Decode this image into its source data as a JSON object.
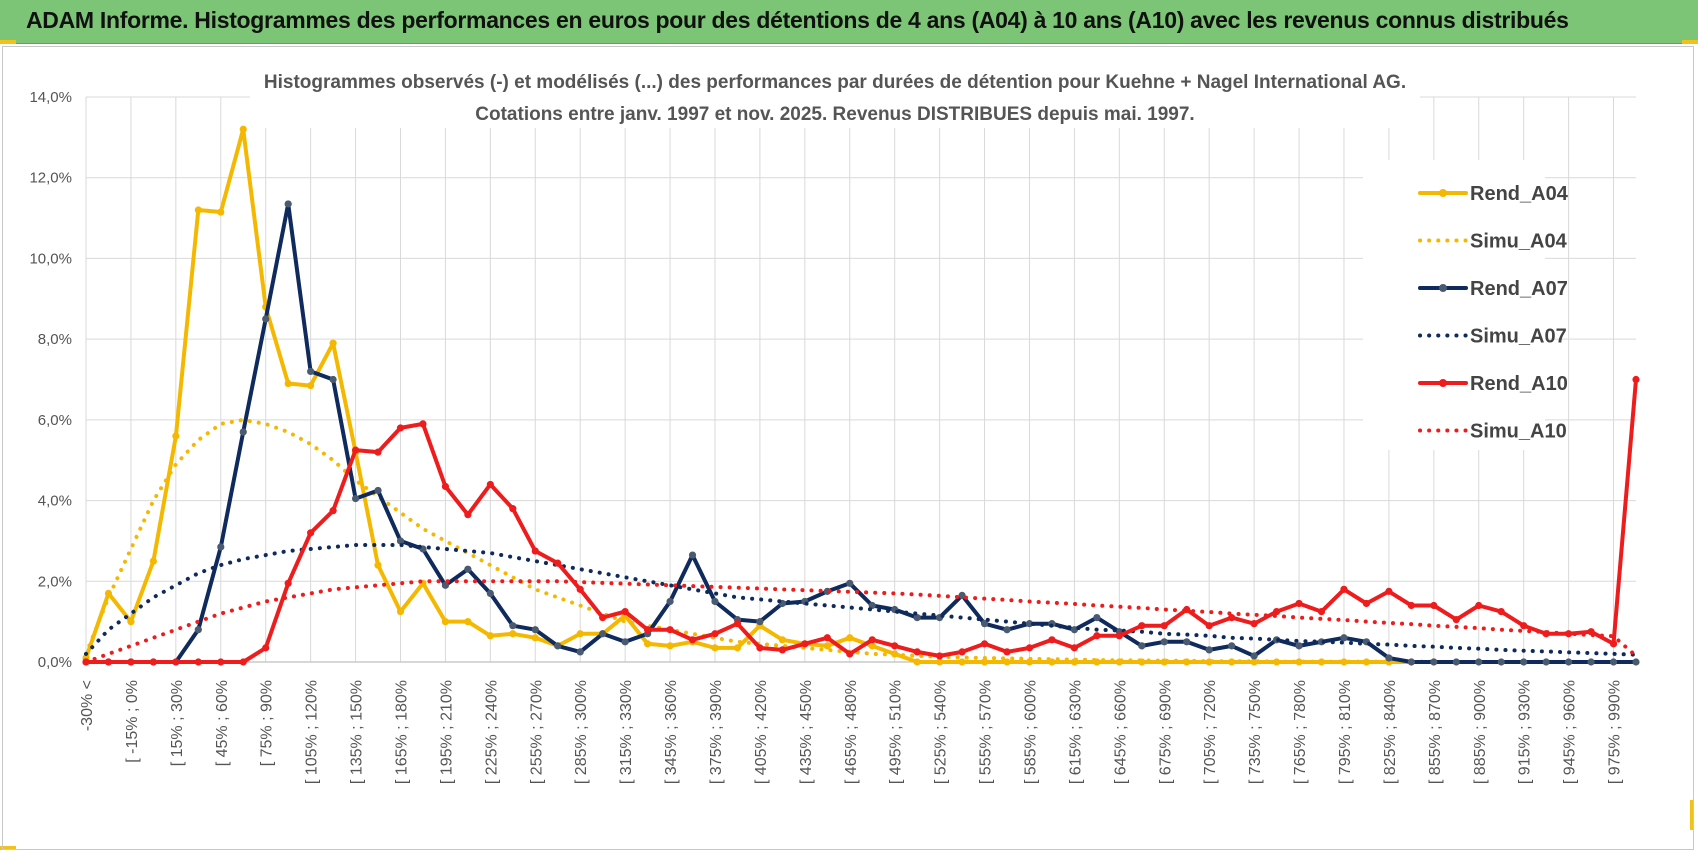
{
  "banner": {
    "title": "ADAM Informe. Histogrammes des performances en euros pour des détentions de 4 ans (A04) à 10 ans (A10) avec les revenus connus distribués",
    "background": "#7cc576"
  },
  "chart_data": {
    "type": "line",
    "title_lines": [
      "Histogrammes observés (-) et modélisés (...) des performances par durées de détention pour Kuehne + Nagel International AG.",
      "Cotations entre janv. 1997 et nov. 2025. Revenus DISTRIBUES depuis mai. 1997."
    ],
    "ylim": [
      0,
      0.14
    ],
    "y_ticks": [
      {
        "value": 0.0,
        "label": "0,0%"
      },
      {
        "value": 0.02,
        "label": "2,0%"
      },
      {
        "value": 0.04,
        "label": "4,0%"
      },
      {
        "value": 0.06,
        "label": "6,0%"
      },
      {
        "value": 0.08,
        "label": "8,0%"
      },
      {
        "value": 0.1,
        "label": "10,0%"
      },
      {
        "value": 0.12,
        "label": "12,0%"
      },
      {
        "value": 0.14,
        "label": "14,0%"
      }
    ],
    "grid": true,
    "legend_position": "right",
    "x_tick_labels": [
      "-30% <",
      "[ -15% ; 0%",
      "[ 15% ; 30%",
      "[ 45% ; 60%",
      "[ 75% ; 90%",
      "[ 105% ; 120%",
      "[ 135% ; 150%",
      "[ 165% ; 180%",
      "[ 195% ; 210%",
      "[ 225% ; 240%",
      "[ 255% ; 270%",
      "[ 285% ; 300%",
      "[ 315% ; 330%",
      "[ 345% ; 360%",
      "[ 375% ; 390%",
      "[ 405% ; 420%",
      "[ 435% ; 450%",
      "[ 465% ; 480%",
      "[ 495% ; 510%",
      "[ 525% ; 540%",
      "[ 555% ; 570%",
      "[ 585% ; 600%",
      "[ 615% ; 630%",
      "[ 645% ; 660%",
      "[ 675% ; 690%",
      "[ 705% ; 720%",
      "[ 735% ; 750%",
      "[ 765% ; 780%",
      "[ 795% ; 810%",
      "[ 825% ; 840%",
      "[ 855% ; 870%",
      "[ 885% ; 900%",
      "[ 915% ; 930%",
      "[ 945% ; 960%",
      "[ 975% ; 990%"
    ],
    "series": [
      {
        "name": "Rend_A04",
        "style": "solid",
        "color": "#f5b800",
        "values": [
          0.001,
          0.017,
          0.01,
          0.025,
          0.056,
          0.112,
          0.1115,
          0.132,
          0.088,
          0.069,
          0.0685,
          0.079,
          0.052,
          0.024,
          0.0125,
          0.0195,
          0.01,
          0.01,
          0.0065,
          0.007,
          0.006,
          0.004,
          0.007,
          0.007,
          0.0115,
          0.0045,
          0.004,
          0.005,
          0.0035,
          0.0035,
          0.009,
          0.0055,
          0.0045,
          0.004,
          0.006,
          0.004,
          0.002,
          0.0,
          0.0,
          0.0,
          0.0,
          0.0,
          0.0,
          0.0,
          0.0,
          0.0,
          0.0,
          0.0,
          0.0,
          0.0,
          0.0,
          0.0,
          0.0,
          0.0,
          0.0,
          0.0,
          0.0,
          0.0,
          0.0,
          0.0,
          0.0
        ]
      },
      {
        "name": "Simu_A04",
        "style": "dotted",
        "color": "#f5b800",
        "values": [
          0.002,
          0.016,
          0.028,
          0.04,
          0.049,
          0.055,
          0.059,
          0.06,
          0.059,
          0.057,
          0.054,
          0.05,
          0.045,
          0.041,
          0.037,
          0.033,
          0.03,
          0.027,
          0.024,
          0.021,
          0.018,
          0.016,
          0.014,
          0.012,
          0.01,
          0.009,
          0.008,
          0.007,
          0.006,
          0.005,
          0.0045,
          0.004,
          0.0035,
          0.003,
          0.0025,
          0.002,
          0.0018,
          0.0015,
          0.0013,
          0.0011,
          0.001,
          0.0009,
          0.0008,
          0.0007,
          0.0006,
          0.0005,
          0.0004,
          0.0004,
          0.0003,
          0.0003,
          0.0002,
          0.0002,
          0.0002,
          0.0001,
          0.0001,
          0.0001,
          0.0001,
          0.0001,
          0.0001,
          0.0001,
          0.0001
        ]
      },
      {
        "name": "Rend_A07",
        "style": "solid",
        "color": "#0f2a5c",
        "values": [
          0,
          0,
          0,
          0,
          0,
          0.008,
          0.0285,
          0.057,
          0.085,
          0.1135,
          0.072,
          0.07,
          0.0405,
          0.0425,
          0.03,
          0.028,
          0.019,
          0.023,
          0.017,
          0.009,
          0.008,
          0.004,
          0.0025,
          0.007,
          0.005,
          0.007,
          0.015,
          0.0265,
          0.015,
          0.0105,
          0.01,
          0.0145,
          0.015,
          0.0175,
          0.0195,
          0.014,
          0.013,
          0.011,
          0.011,
          0.0165,
          0.0095,
          0.008,
          0.0095,
          0.0095,
          0.008,
          0.011,
          0.0075,
          0.004,
          0.005,
          0.005,
          0.003,
          0.004,
          0.0015,
          0.0055,
          0.004,
          0.005,
          0.006,
          0.005,
          0.001,
          0.0,
          0.0,
          0.0,
          0.0,
          0.0,
          0.0,
          0.0,
          0.0,
          0.0,
          0.0,
          0.0
        ]
      },
      {
        "name": "Simu_A07",
        "style": "dotted",
        "color": "#0f2a5c",
        "values": [
          0.002,
          0.008,
          0.012,
          0.016,
          0.019,
          0.022,
          0.024,
          0.0255,
          0.0265,
          0.0275,
          0.028,
          0.0285,
          0.029,
          0.029,
          0.029,
          0.0285,
          0.028,
          0.0275,
          0.027,
          0.026,
          0.025,
          0.024,
          0.023,
          0.022,
          0.021,
          0.02,
          0.019,
          0.018,
          0.017,
          0.016,
          0.0155,
          0.015,
          0.0145,
          0.014,
          0.0135,
          0.013,
          0.0125,
          0.012,
          0.0115,
          0.011,
          0.0105,
          0.01,
          0.0095,
          0.009,
          0.0085,
          0.008,
          0.0078,
          0.0075,
          0.007,
          0.0068,
          0.0065,
          0.006,
          0.0058,
          0.0055,
          0.0052,
          0.005,
          0.0048,
          0.0045,
          0.0043,
          0.004,
          0.0038,
          0.0035,
          0.0033,
          0.003,
          0.0028,
          0.0026,
          0.0024,
          0.0022,
          0.002,
          0.0018
        ]
      },
      {
        "name": "Rend_A10",
        "style": "solid",
        "color": "#ee1c1c",
        "values": [
          0,
          0,
          0,
          0,
          0,
          0,
          0,
          0,
          0.0035,
          0.0195,
          0.032,
          0.0375,
          0.0525,
          0.052,
          0.058,
          0.059,
          0.0435,
          0.0365,
          0.044,
          0.038,
          0.0275,
          0.0245,
          0.018,
          0.011,
          0.0125,
          0.008,
          0.008,
          0.0055,
          0.007,
          0.0095,
          0.0035,
          0.003,
          0.0045,
          0.006,
          0.002,
          0.0055,
          0.004,
          0.0025,
          0.0015,
          0.0025,
          0.0045,
          0.0025,
          0.0035,
          0.0055,
          0.0035,
          0.0065,
          0.0065,
          0.009,
          0.009,
          0.013,
          0.009,
          0.011,
          0.0095,
          0.0125,
          0.0145,
          0.0125,
          0.018,
          0.0145,
          0.0175,
          0.014,
          0.014,
          0.0105,
          0.014,
          0.0125,
          0.009,
          0.007,
          0.007,
          0.0075,
          0.0045,
          0.07
        ]
      },
      {
        "name": "Simu_A10",
        "style": "dotted",
        "color": "#ee1c1c",
        "values": [
          0.0,
          0.002,
          0.004,
          0.006,
          0.008,
          0.01,
          0.012,
          0.0135,
          0.015,
          0.016,
          0.017,
          0.018,
          0.0185,
          0.019,
          0.0195,
          0.02,
          0.02,
          0.02,
          0.02,
          0.02,
          0.02,
          0.02,
          0.0198,
          0.0196,
          0.0194,
          0.0192,
          0.019,
          0.0188,
          0.0186,
          0.0184,
          0.0182,
          0.018,
          0.0178,
          0.0176,
          0.0174,
          0.0172,
          0.017,
          0.0167,
          0.0164,
          0.016,
          0.0157,
          0.0154,
          0.015,
          0.0147,
          0.0144,
          0.014,
          0.0137,
          0.0134,
          0.013,
          0.0127,
          0.0124,
          0.012,
          0.0117,
          0.0114,
          0.011,
          0.0107,
          0.0104,
          0.01,
          0.0097,
          0.0094,
          0.009,
          0.0087,
          0.0084,
          0.008,
          0.0077,
          0.0074,
          0.007,
          0.0067,
          0.0064,
          0.0015
        ]
      }
    ]
  }
}
